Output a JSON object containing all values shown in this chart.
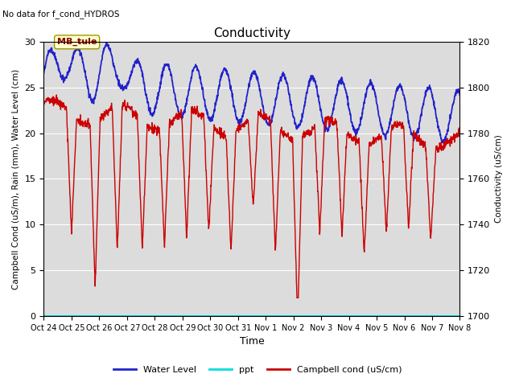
{
  "title": "Conductivity",
  "subtitle": "No data for f_cond_HYDROS",
  "xlabel": "Time",
  "ylabel_left": "Campbell Cond (uS/m), Rain (mm), Water Level (cm)",
  "ylabel_right": "Conductivity (uS/cm)",
  "ylim_left": [
    0,
    30
  ],
  "ylim_right": [
    1700,
    1820
  ],
  "bg_color": "#dcdcdc",
  "x_tick_labels": [
    "Oct 24",
    "Oct 25",
    "Oct 26",
    "Oct 27",
    "Oct 28",
    "Oct 29",
    "Oct 30",
    "Oct 31",
    "Nov 1",
    "Nov 2",
    "Nov 3",
    "Nov 4",
    "Nov 5",
    "Nov 6",
    "Nov 7",
    "Nov 8"
  ],
  "water_level_color": "#2222cc",
  "ppt_color": "#00dddd",
  "campbell_color": "#cc0000",
  "annotation_text": "MB_tule",
  "fig_width": 6.4,
  "fig_height": 4.8,
  "dpi": 100,
  "yticks_left": [
    0,
    5,
    10,
    15,
    20,
    25,
    30
  ],
  "yticks_right": [
    1700,
    1720,
    1740,
    1760,
    1780,
    1800,
    1820
  ]
}
